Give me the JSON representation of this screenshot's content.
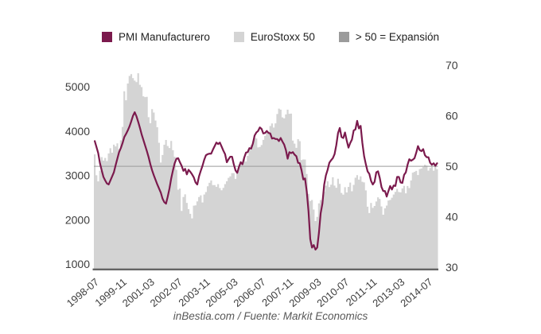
{
  "legend": {
    "items": [
      {
        "label": "PMI Manufacturero",
        "color": "#7b1a4d"
      },
      {
        "label": "EuroStoxx 50",
        "color": "#d4d4d4"
      },
      {
        "label": "> 50 = Expansión",
        "color": "#9b9b9b"
      }
    ]
  },
  "footer": {
    "credit": "inBestia.com / Fuente: Markit Economics"
  },
  "chart_data": {
    "type": "combo",
    "title": "",
    "start_month": "1998-07",
    "end_month": "2014-12",
    "x_tick_labels": [
      "1998-07",
      "1999-11",
      "2001-03",
      "2002-07",
      "2003-11",
      "2005-03",
      "2006-07",
      "2007-11",
      "2009-03",
      "2010-07",
      "2011-11",
      "2013-03",
      "2014-07"
    ],
    "x_tick_indices": [
      0,
      16,
      32,
      48,
      64,
      80,
      96,
      112,
      128,
      144,
      160,
      176,
      192
    ],
    "left_axis": {
      "series": "EuroStoxx 50",
      "ticks": [
        1000,
        2000,
        3000,
        4000,
        5000
      ],
      "lim": [
        900,
        5564
      ]
    },
    "right_axis": {
      "series": "PMI Manufacturero",
      "ticks": [
        30,
        40,
        50,
        60,
        70
      ],
      "lim": [
        29.7,
        70.65
      ]
    },
    "reference_line": {
      "axis": "right",
      "value": 50,
      "meaning": "> 50 = Expansión",
      "color": "#9a9a9a"
    },
    "grid": false,
    "legend_position": "top",
    "series": [
      {
        "name": "EuroStoxx 50",
        "type": "bar",
        "axis": "left",
        "color": "#d4d4d4",
        "values": [
          3480,
          3010,
          2870,
          3110,
          3420,
          3342,
          3400,
          3330,
          3500,
          3620,
          3520,
          3700,
          3660,
          3730,
          3600,
          3800,
          4100,
          4904,
          4700,
          5080,
          5250,
          5290,
          5200,
          5145,
          5110,
          5310,
          5050,
          5000,
          4790,
          4772,
          4780,
          4320,
          4185,
          4500,
          4426,
          4244,
          4092,
          3743,
          3297,
          3468,
          3698,
          3806,
          3670,
          3624,
          3784,
          3574,
          3426,
          3133,
          2686,
          2709,
          2204,
          2519,
          2579,
          2386,
          2248,
          2140,
          2036,
          2324,
          2330,
          2420,
          2519,
          2556,
          2395,
          2575,
          2630,
          2761,
          2839,
          2894,
          2787,
          2787,
          2749,
          2811,
          2720,
          2671,
          2726,
          2811,
          2876,
          2951,
          2985,
          3058,
          3056,
          2930,
          3077,
          3182,
          3327,
          3264,
          3429,
          3320,
          3447,
          3579,
          3691,
          3774,
          3854,
          3839,
          3637,
          3649,
          3692,
          3808,
          3899,
          4004,
          3987,
          4120,
          4178,
          4087,
          4181,
          4392,
          4512,
          4489,
          4316,
          4295,
          4382,
          4489,
          4395,
          4400,
          3792,
          3724,
          3628,
          3825,
          3778,
          3353,
          3367,
          3365,
          3038,
          2591,
          2430,
          2451,
          2236,
          1976,
          2071,
          2376,
          2452,
          2401,
          2638,
          2775,
          2873,
          2744,
          2797,
          2965,
          2777,
          2728,
          2931,
          2816,
          2610,
          2573,
          2742,
          2622,
          2748,
          2844,
          2650,
          2793,
          2954,
          3013,
          2911,
          2985,
          2862,
          2848,
          2670,
          2302,
          2159,
          2385,
          2275,
          2317,
          2417,
          2512,
          2477,
          2306,
          2119,
          2264,
          2325,
          2440,
          2454,
          2504,
          2575,
          2636,
          2703,
          2634,
          2624,
          2712,
          2770,
          2602,
          2768,
          2721,
          2893,
          3068,
          3087,
          3109,
          3014,
          3149,
          3162,
          3198,
          3245,
          3228,
          3116,
          3173,
          3226,
          3113,
          3251,
          3146
        ]
      },
      {
        "name": "PMI Manufacturero",
        "type": "line",
        "axis": "right",
        "color": "#7b1a4d",
        "values": [
          55.0,
          53.8,
          52.6,
          50.6,
          49.2,
          47.9,
          47.2,
          46.6,
          46.4,
          47.2,
          48.0,
          48.8,
          50.2,
          51.5,
          52.8,
          53.6,
          54.6,
          55.8,
          56.4,
          57.1,
          57.9,
          58.9,
          60.0,
          60.7,
          59.9,
          58.8,
          57.6,
          56.3,
          55.2,
          54.1,
          53.0,
          51.8,
          50.4,
          49.2,
          48.2,
          47.3,
          46.4,
          45.6,
          44.8,
          43.6,
          42.9,
          42.6,
          44.0,
          45.6,
          47.6,
          49.2,
          50.6,
          51.5,
          51.6,
          50.8,
          50.1,
          49.1,
          49.5,
          48.4,
          49.3,
          48.9,
          48.4,
          47.8,
          46.8,
          46.4,
          48.0,
          49.1,
          50.1,
          51.3,
          52.2,
          52.4,
          52.5,
          52.5,
          53.3,
          54.0,
          54.7,
          54.4,
          54.7,
          53.9,
          53.1,
          52.4,
          50.8,
          51.4,
          51.9,
          51.9,
          50.4,
          49.2,
          48.7,
          49.9,
          50.8,
          50.4,
          51.7,
          52.7,
          52.8,
          53.6,
          53.5,
          54.5,
          56.1,
          56.7,
          57.0,
          57.7,
          57.4,
          56.5,
          56.6,
          57.0,
          56.6,
          56.5,
          55.5,
          55.6,
          55.4,
          55.4,
          55.0,
          55.6,
          54.9,
          54.3,
          53.2,
          51.5,
          52.8,
          52.6,
          52.8,
          52.3,
          52.0,
          50.7,
          50.6,
          49.2,
          47.4,
          47.6,
          45.0,
          41.1,
          35.6,
          33.9,
          34.4,
          33.5,
          33.9,
          36.8,
          40.7,
          42.6,
          46.3,
          48.2,
          49.3,
          50.7,
          51.2,
          51.6,
          52.4,
          54.2,
          56.6,
          57.6,
          55.8,
          55.6,
          56.7,
          55.1,
          53.7,
          54.6,
          55.3,
          57.1,
          57.3,
          59.0,
          57.5,
          58.0,
          54.6,
          52.0,
          50.4,
          49.0,
          48.5,
          47.1,
          46.4,
          46.9,
          48.8,
          49.0,
          47.7,
          45.9,
          45.1,
          45.1,
          44.0,
          45.1,
          46.1,
          45.4,
          46.2,
          46.1,
          47.9,
          47.9,
          46.8,
          46.7,
          48.3,
          48.8,
          50.3,
          51.4,
          51.1,
          51.3,
          51.6,
          52.7,
          54.0,
          53.2,
          53.0,
          53.4,
          52.2,
          51.8,
          51.8,
          50.7,
          50.3,
          50.6,
          50.1,
          50.6
        ]
      }
    ],
    "styles": {
      "axis_line_color": "#656565",
      "tick_label_color": "#3d3d3d",
      "line_width": 2.2
    }
  }
}
